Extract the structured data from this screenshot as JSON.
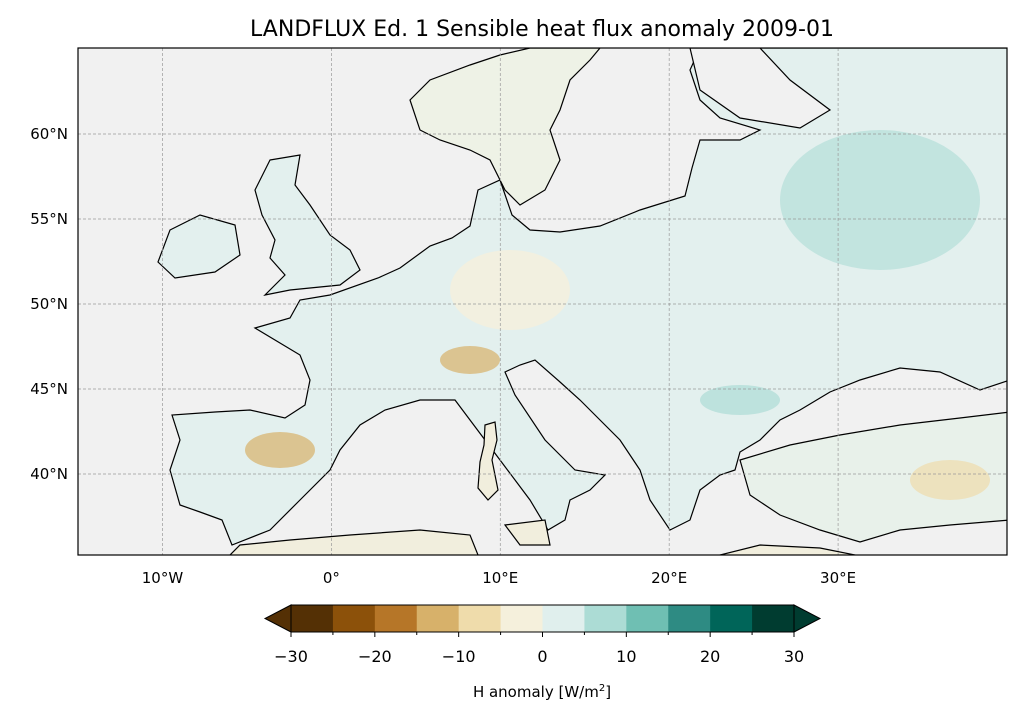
{
  "title": "LANDFLUX Ed. 1 Sensible heat flux anomaly 2009-01",
  "map": {
    "extent_lon": [
      -15,
      40
    ],
    "extent_lat": [
      35,
      65
    ],
    "lon_ticks": [
      {
        "value": -10,
        "label": "10°W"
      },
      {
        "value": 0,
        "label": "0°"
      },
      {
        "value": 10,
        "label": "10°E"
      },
      {
        "value": 20,
        "label": "20°E"
      },
      {
        "value": 30,
        "label": "30°E"
      }
    ],
    "lat_ticks": [
      {
        "value": 60,
        "label": "60°N"
      },
      {
        "value": 55,
        "label": "55°N"
      },
      {
        "value": 50,
        "label": "50°N"
      },
      {
        "value": 45,
        "label": "45°N"
      },
      {
        "value": 40,
        "label": "40°N"
      }
    ]
  },
  "colorbar": {
    "label": "H anomaly [W/m",
    "label_sup": "2",
    "label_end": "]",
    "range": [
      -30,
      30
    ],
    "bounds": [
      -30,
      -25,
      -20,
      -15,
      -10,
      -5,
      0,
      5,
      10,
      15,
      20,
      25,
      30
    ],
    "colors": [
      "#543005",
      "#8c510a",
      "#b67628",
      "#d7b16a",
      "#efdcab",
      "#f5f0dc",
      "#e0efed",
      "#acdcd5",
      "#6fbfb3",
      "#2e8b83",
      "#006559",
      "#003c30"
    ],
    "tick_labels": [
      {
        "value": -30,
        "label": "−30"
      },
      {
        "value": -20,
        "label": "−20"
      },
      {
        "value": -10,
        "label": "−10"
      },
      {
        "value": 0,
        "label": "0"
      },
      {
        "value": 10,
        "label": "10"
      },
      {
        "value": 20,
        "label": "20"
      },
      {
        "value": 30,
        "label": "30"
      }
    ]
  }
}
